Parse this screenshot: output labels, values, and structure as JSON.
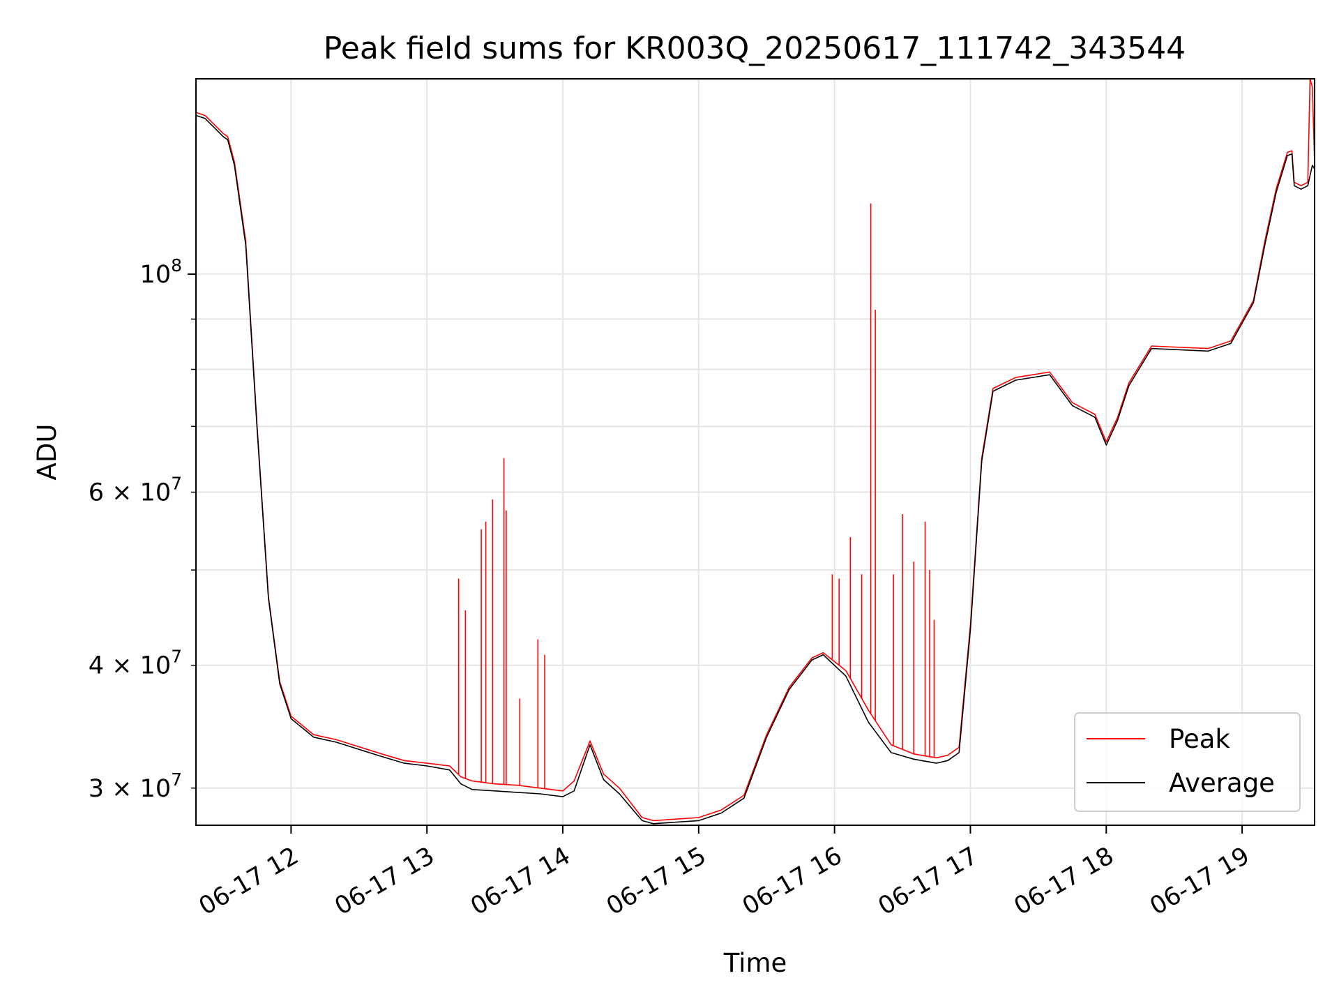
{
  "chart_data": {
    "type": "line",
    "title": "Peak field sums for KR003Q_20250617_111742_343544",
    "xlabel": "Time",
    "ylabel": "ADU",
    "x_scale": "time",
    "y_scale": "log",
    "xlim": [
      "2025-06-17 11:18",
      "2025-06-17 19:32"
    ],
    "ylim": [
      27500000,
      158000000
    ],
    "x_ticks": [
      {
        "value": "2025-06-17 12:00",
        "label": "06-17 12"
      },
      {
        "value": "2025-06-17 13:00",
        "label": "06-17 13"
      },
      {
        "value": "2025-06-17 14:00",
        "label": "06-17 14"
      },
      {
        "value": "2025-06-17 15:00",
        "label": "06-17 15"
      },
      {
        "value": "2025-06-17 16:00",
        "label": "06-17 16"
      },
      {
        "value": "2025-06-17 17:00",
        "label": "06-17 17"
      },
      {
        "value": "2025-06-17 18:00",
        "label": "06-17 18"
      },
      {
        "value": "2025-06-17 19:00",
        "label": "06-17 19"
      }
    ],
    "y_ticks_major": [
      {
        "value": 100000000,
        "base": "10",
        "exp": "8",
        "coef": ""
      }
    ],
    "y_ticks_minor_labeled": [
      {
        "value": 30000000,
        "coef": "3",
        "base": "10",
        "exp": "7"
      },
      {
        "value": 40000000,
        "coef": "4",
        "base": "10",
        "exp": "7"
      },
      {
        "value": 60000000,
        "coef": "6",
        "base": "10",
        "exp": "7"
      }
    ],
    "y_ticks_minor": [
      30000000,
      40000000,
      50000000,
      60000000,
      70000000,
      80000000,
      90000000,
      100000000
    ],
    "grid": true,
    "legend_position": "bottom-right",
    "series": [
      {
        "name": "Peak",
        "color": "#ff0000",
        "x": [
          "2025-06-17 11:18",
          "2025-06-17 11:22",
          "2025-06-17 11:26",
          "2025-06-17 11:30",
          "2025-06-17 11:32",
          "2025-06-17 11:35",
          "2025-06-17 11:40",
          "2025-06-17 11:45",
          "2025-06-17 11:50",
          "2025-06-17 11:55",
          "2025-06-17 12:00",
          "2025-06-17 12:10",
          "2025-06-17 12:20",
          "2025-06-17 12:40",
          "2025-06-17 12:50",
          "2025-06-17 13:00",
          "2025-06-17 13:10",
          "2025-06-17 13:15",
          "2025-06-17 13:20",
          "2025-06-17 13:30",
          "2025-06-17 13:40",
          "2025-06-17 13:50",
          "2025-06-17 14:00",
          "2025-06-17 14:05",
          "2025-06-17 14:12",
          "2025-06-17 14:18",
          "2025-06-17 14:25",
          "2025-06-17 14:35",
          "2025-06-17 14:40",
          "2025-06-17 14:50",
          "2025-06-17 15:00",
          "2025-06-17 15:10",
          "2025-06-17 15:20",
          "2025-06-17 15:30",
          "2025-06-17 15:40",
          "2025-06-17 15:50",
          "2025-06-17 15:55",
          "2025-06-17 16:05",
          "2025-06-17 16:15",
          "2025-06-17 16:25",
          "2025-06-17 16:35",
          "2025-06-17 16:45",
          "2025-06-17 16:50",
          "2025-06-17 16:55",
          "2025-06-17 17:00",
          "2025-06-17 17:05",
          "2025-06-17 17:10",
          "2025-06-17 17:20",
          "2025-06-17 17:35",
          "2025-06-17 17:45",
          "2025-06-17 17:55",
          "2025-06-17 18:00",
          "2025-06-17 18:05",
          "2025-06-17 18:10",
          "2025-06-17 18:20",
          "2025-06-17 18:30",
          "2025-06-17 18:45",
          "2025-06-17 18:55",
          "2025-06-17 19:05",
          "2025-06-17 19:10",
          "2025-06-17 19:15",
          "2025-06-17 19:20",
          "2025-06-17 19:22",
          "2025-06-17 19:23",
          "2025-06-17 19:26",
          "2025-06-17 19:29",
          "2025-06-17 19:30",
          "2025-06-17 19:31",
          "2025-06-17 19:32"
        ],
        "y": [
          146000000,
          145000000,
          142000000,
          139000000,
          138000000,
          130000000,
          108000000,
          70000000,
          47000000,
          38500000,
          35500000,
          34000000,
          33600000,
          32500000,
          32000000,
          31800000,
          31600000,
          30800000,
          30500000,
          30300000,
          30200000,
          30000000,
          29800000,
          30500000,
          33500000,
          31000000,
          30000000,
          28000000,
          27800000,
          27900000,
          28000000,
          28500000,
          29500000,
          34000000,
          38000000,
          40700000,
          41200000,
          39500000,
          36000000,
          33200000,
          32500000,
          32200000,
          32400000,
          33000000,
          44000000,
          65000000,
          76500000,
          78500000,
          79500000,
          74000000,
          72000000,
          67500000,
          71500000,
          77500000,
          84500000,
          84300000,
          84000000,
          85500000,
          94000000,
          108000000,
          122000000,
          133000000,
          133500000,
          124000000,
          123000000,
          124000000,
          158000000,
          155000000,
          130000000
        ]
      },
      {
        "name": "Average",
        "color": "#000000",
        "x": [
          "2025-06-17 11:18",
          "2025-06-17 11:22",
          "2025-06-17 11:26",
          "2025-06-17 11:30",
          "2025-06-17 11:32",
          "2025-06-17 11:35",
          "2025-06-17 11:40",
          "2025-06-17 11:45",
          "2025-06-17 11:50",
          "2025-06-17 11:55",
          "2025-06-17 12:00",
          "2025-06-17 12:10",
          "2025-06-17 12:20",
          "2025-06-17 12:40",
          "2025-06-17 12:50",
          "2025-06-17 13:00",
          "2025-06-17 13:10",
          "2025-06-17 13:15",
          "2025-06-17 13:20",
          "2025-06-17 13:30",
          "2025-06-17 13:40",
          "2025-06-17 13:50",
          "2025-06-17 14:00",
          "2025-06-17 14:05",
          "2025-06-17 14:12",
          "2025-06-17 14:18",
          "2025-06-17 14:25",
          "2025-06-17 14:35",
          "2025-06-17 14:40",
          "2025-06-17 14:50",
          "2025-06-17 15:00",
          "2025-06-17 15:10",
          "2025-06-17 15:20",
          "2025-06-17 15:30",
          "2025-06-17 15:40",
          "2025-06-17 15:50",
          "2025-06-17 15:55",
          "2025-06-17 16:05",
          "2025-06-17 16:15",
          "2025-06-17 16:25",
          "2025-06-17 16:35",
          "2025-06-17 16:45",
          "2025-06-17 16:50",
          "2025-06-17 16:55",
          "2025-06-17 17:00",
          "2025-06-17 17:05",
          "2025-06-17 17:10",
          "2025-06-17 17:20",
          "2025-06-17 17:35",
          "2025-06-17 17:45",
          "2025-06-17 17:55",
          "2025-06-17 18:00",
          "2025-06-17 18:05",
          "2025-06-17 18:10",
          "2025-06-17 18:20",
          "2025-06-17 18:30",
          "2025-06-17 18:45",
          "2025-06-17 18:55",
          "2025-06-17 19:05",
          "2025-06-17 19:10",
          "2025-06-17 19:15",
          "2025-06-17 19:20",
          "2025-06-17 19:22",
          "2025-06-17 19:23",
          "2025-06-17 19:26",
          "2025-06-17 19:29",
          "2025-06-17 19:30",
          "2025-06-17 19:31",
          "2025-06-17 19:32"
        ],
        "y": [
          145000000,
          144000000,
          141000000,
          138000000,
          137000000,
          129000000,
          107000000,
          69500000,
          46800000,
          38300000,
          35300000,
          33800000,
          33400000,
          32300000,
          31800000,
          31600000,
          31300000,
          30300000,
          29900000,
          29800000,
          29700000,
          29600000,
          29400000,
          29800000,
          33200000,
          30600000,
          29600000,
          27800000,
          27600000,
          27700000,
          27800000,
          28300000,
          29300000,
          33800000,
          37800000,
          40500000,
          41000000,
          39000000,
          35000000,
          32600000,
          32100000,
          31800000,
          32000000,
          32600000,
          43500000,
          64500000,
          76000000,
          78000000,
          79000000,
          73500000,
          71500000,
          67000000,
          71000000,
          77000000,
          84000000,
          83800000,
          83500000,
          85000000,
          93500000,
          107000000,
          121000000,
          132000000,
          132500000,
          123000000,
          122000000,
          123000000,
          126000000,
          129000000,
          128000000
        ]
      }
    ],
    "spikes": {
      "series": "Peak",
      "x": [
        "2025-06-17 13:14",
        "2025-06-17 13:17",
        "2025-06-17 13:24",
        "2025-06-17 13:26",
        "2025-06-17 13:29",
        "2025-06-17 13:34",
        "2025-06-17 13:35",
        "2025-06-17 13:41",
        "2025-06-17 13:49",
        "2025-06-17 13:52",
        "2025-06-17 15:59",
        "2025-06-17 16:02",
        "2025-06-17 16:07",
        "2025-06-17 16:12",
        "2025-06-17 16:16",
        "2025-06-17 16:18",
        "2025-06-17 16:26",
        "2025-06-17 16:30",
        "2025-06-17 16:35",
        "2025-06-17 16:40",
        "2025-06-17 16:42",
        "2025-06-17 16:44"
      ],
      "y": [
        49000000,
        45500000,
        55000000,
        56000000,
        59000000,
        65000000,
        57500000,
        37000000,
        42500000,
        41000000,
        49500000,
        49000000,
        54000000,
        49500000,
        118000000,
        92000000,
        49500000,
        57000000,
        51000000,
        56000000,
        50000000,
        44500000
      ]
    }
  },
  "legend": {
    "items": [
      {
        "label": "Peak",
        "color": "#ff0000"
      },
      {
        "label": "Average",
        "color": "#000000"
      }
    ]
  },
  "style": {
    "grid_color": "#e6e6e6",
    "axes_color": "#000000",
    "legend_border": "#cccccc"
  }
}
